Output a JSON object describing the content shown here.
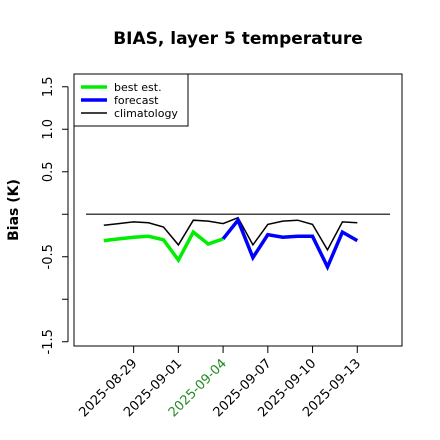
{
  "chart_data": {
    "type": "line",
    "title": "BIAS, layer 5 temperature",
    "xlabel": "",
    "ylabel": "Bias (K)",
    "ylim": [
      -1.55,
      1.65
    ],
    "xlim": [
      "2025-08-25",
      "2025-09-16"
    ],
    "y_ticks": [
      "-1.5",
      "-0.5",
      "0.5",
      "1.0",
      "1.5"
    ],
    "x_ticks": [
      "2025-08-29",
      "2025-09-01",
      "2025-09-04",
      "2025-09-07",
      "2025-09-10",
      "2025-09-13"
    ],
    "x_tick_colors": [
      "#000000",
      "#000000",
      "#228b22",
      "#000000",
      "#000000",
      "#000000"
    ],
    "reference_line": 0.0,
    "legend": {
      "position": "top-left",
      "entries": [
        "best est.",
        "forecast",
        "climatology"
      ]
    },
    "series": [
      {
        "name": "best est.",
        "color": "#00ee00",
        "x": [
          "2025-08-27",
          "2025-08-28",
          "2025-08-29",
          "2025-08-30",
          "2025-08-31",
          "2025-09-01",
          "2025-09-02",
          "2025-09-03",
          "2025-09-04"
        ],
        "values": [
          -0.31,
          -0.29,
          -0.27,
          -0.26,
          -0.3,
          -0.54,
          -0.21,
          -0.35,
          -0.29
        ]
      },
      {
        "name": "forecast",
        "color": "#0000ff",
        "x": [
          "2025-09-04",
          "2025-09-05",
          "2025-09-06",
          "2025-09-07",
          "2025-09-08",
          "2025-09-09",
          "2025-09-10",
          "2025-09-11",
          "2025-09-12",
          "2025-09-13"
        ],
        "values": [
          -0.29,
          -0.07,
          -0.51,
          -0.24,
          -0.27,
          -0.26,
          -0.26,
          -0.62,
          -0.21,
          -0.31
        ]
      },
      {
        "name": "climatology",
        "color": "#000000",
        "x": [
          "2025-08-27",
          "2025-08-28",
          "2025-08-29",
          "2025-08-30",
          "2025-08-31",
          "2025-09-01",
          "2025-09-02",
          "2025-09-03",
          "2025-09-04",
          "2025-09-05",
          "2025-09-06",
          "2025-09-07",
          "2025-09-08",
          "2025-09-09",
          "2025-09-10",
          "2025-09-11",
          "2025-09-12",
          "2025-09-13"
        ],
        "values": [
          -0.13,
          -0.11,
          -0.09,
          -0.1,
          -0.15,
          -0.36,
          -0.07,
          -0.08,
          -0.11,
          -0.04,
          -0.36,
          -0.12,
          -0.08,
          -0.07,
          -0.12,
          -0.42,
          -0.09,
          -0.1
        ]
      }
    ]
  }
}
